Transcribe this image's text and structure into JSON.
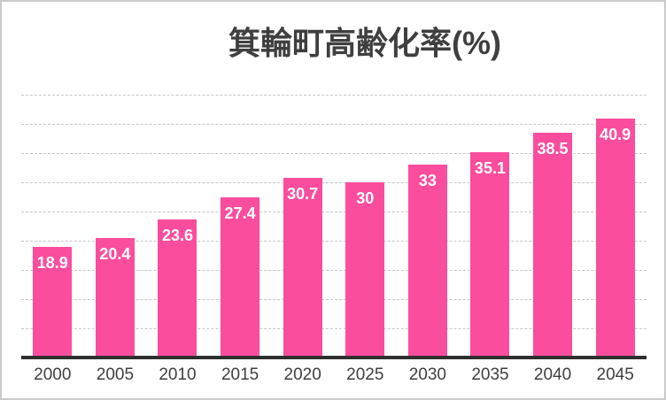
{
  "chart_title": "箕輪町高齢化率(%)",
  "colors": {
    "bar": "#fb4d9d",
    "grid": "#c6c6c6",
    "axis_line": "#2f2f2f",
    "title_text": "#3f3f3f",
    "tick_text": "#3f3f3f",
    "value_label_text": "#ffffff",
    "canvas_border": "#cbcbcb",
    "background": "#ffffff"
  },
  "chart_data": {
    "type": "bar",
    "title": "箕輪町高齢化率(%)",
    "categories": [
      "2000",
      "2005",
      "2010",
      "2015",
      "2020",
      "2025",
      "2030",
      "2035",
      "2040",
      "2045"
    ],
    "values": [
      18.9,
      20.4,
      23.6,
      27.4,
      30.7,
      30,
      33,
      35.1,
      38.5,
      40.9
    ],
    "data_labels": [
      "18.9",
      "20.4",
      "23.6",
      "27.4",
      "30.7",
      "30",
      "33",
      "35.1",
      "38.5",
      "40.9"
    ],
    "xlabel": "",
    "ylabel": "",
    "ylim": [
      0,
      45
    ],
    "gridline_interval": 5,
    "grid": "horizontal-dashed",
    "y_axis_tick_labels_visible": false,
    "legend_position": "none",
    "data_label_position": "inside-end",
    "series_name": "箕輪町高齢化率(%)"
  }
}
